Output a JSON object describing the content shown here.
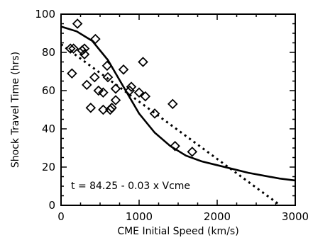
{
  "chart_data": {
    "type": "scatter",
    "title": "",
    "xlabel": "CME Initial Speed (km/s)",
    "ylabel": "Shock Travel Time (hrs)",
    "xlim": [
      0,
      3000
    ],
    "ylim": [
      0,
      100
    ],
    "x_ticks": [
      0,
      1000,
      2000,
      3000
    ],
    "y_ticks": [
      0,
      20,
      40,
      60,
      80,
      100
    ],
    "grid": false,
    "marker": "diamond",
    "series": [
      {
        "type": "scatter",
        "x": [
          160,
          210,
          270,
          300,
          300,
          440,
          120,
          140,
          430,
          330,
          480,
          540,
          600,
          590,
          630,
          540,
          700,
          650,
          800,
          900,
          1050,
          1000,
          1080,
          1200,
          1430,
          1460,
          1680,
          380,
          700,
          880
        ],
        "y": [
          82,
          95,
          81,
          79,
          82,
          87,
          82,
          69,
          67,
          63,
          60,
          59,
          67,
          73,
          50,
          50,
          55,
          51,
          71,
          62,
          75,
          59,
          57,
          48,
          53,
          31,
          28,
          51,
          61,
          60
        ]
      }
    ],
    "fit_lines": [
      {
        "style": "solid",
        "points": [
          [
            0,
            93.5
          ],
          [
            200,
            91
          ],
          [
            400,
            86
          ],
          [
            600,
            76
          ],
          [
            800,
            62
          ],
          [
            1000,
            48
          ],
          [
            1200,
            38
          ],
          [
            1400,
            31
          ],
          [
            1600,
            26
          ],
          [
            1800,
            23
          ],
          [
            2000,
            21
          ],
          [
            2200,
            19
          ],
          [
            2400,
            17
          ],
          [
            2600,
            15.5
          ],
          [
            2800,
            14
          ],
          [
            3000,
            13
          ]
        ]
      },
      {
        "style": "dotted",
        "points": [
          [
            0,
            84.25
          ],
          [
            2808,
            0
          ]
        ]
      }
    ],
    "annotation": "t = 84.25 - 0.03 x Vcme"
  }
}
